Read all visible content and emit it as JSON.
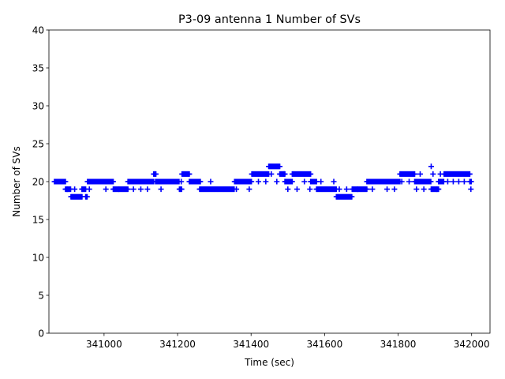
{
  "chart_data": {
    "type": "scatter",
    "title": "P3-09 antenna 1 Number of SVs",
    "xlabel": "Time (sec)",
    "ylabel": "Number of SVs",
    "xlim": [
      340850,
      342050
    ],
    "ylim": [
      0,
      40
    ],
    "xticks": [
      341000,
      341200,
      341400,
      341600,
      341800,
      342000
    ],
    "yticks": [
      0,
      5,
      10,
      15,
      20,
      25,
      30,
      35,
      40
    ],
    "marker": "+",
    "color": "#0000ff",
    "segments": [
      {
        "from": 340865,
        "to": 340895,
        "value": 20
      },
      {
        "from": 340895,
        "to": 340910,
        "value": 19
      },
      {
        "from": 340910,
        "to": 340940,
        "value": 18
      },
      {
        "from": 340940,
        "to": 340950,
        "value": 19
      },
      {
        "from": 340950,
        "to": 340955,
        "value": 18
      },
      {
        "from": 340955,
        "to": 341025,
        "value": 20
      },
      {
        "from": 341025,
        "to": 341065,
        "value": 19
      },
      {
        "from": 341065,
        "to": 341135,
        "value": 20
      },
      {
        "from": 341135,
        "to": 341142,
        "value": 21
      },
      {
        "from": 341142,
        "to": 341205,
        "value": 20
      },
      {
        "from": 341205,
        "to": 341212,
        "value": 19
      },
      {
        "from": 341212,
        "to": 341232,
        "value": 21
      },
      {
        "from": 341232,
        "to": 341262,
        "value": 20
      },
      {
        "from": 341262,
        "to": 341355,
        "value": 19
      },
      {
        "from": 341355,
        "to": 341402,
        "value": 20
      },
      {
        "from": 341402,
        "to": 341448,
        "value": 21
      },
      {
        "from": 341448,
        "to": 341478,
        "value": 22
      },
      {
        "from": 341478,
        "to": 341492,
        "value": 21
      },
      {
        "from": 341492,
        "to": 341512,
        "value": 20
      },
      {
        "from": 341512,
        "to": 341562,
        "value": 21
      },
      {
        "from": 341562,
        "to": 341578,
        "value": 20
      },
      {
        "from": 341578,
        "to": 341632,
        "value": 19
      },
      {
        "from": 341632,
        "to": 341675,
        "value": 18
      },
      {
        "from": 341675,
        "to": 341715,
        "value": 19
      },
      {
        "from": 341715,
        "to": 341805,
        "value": 20
      },
      {
        "from": 341805,
        "to": 341845,
        "value": 21
      },
      {
        "from": 341845,
        "to": 341890,
        "value": 20
      },
      {
        "from": 341890,
        "to": 341910,
        "value": 19
      },
      {
        "from": 341910,
        "to": 341925,
        "value": 20
      },
      {
        "from": 341925,
        "to": 341995,
        "value": 21
      },
      {
        "from": 341995,
        "to": 342000,
        "value": 20
      }
    ],
    "extra_points": [
      {
        "x": 340900,
        "y": 19
      },
      {
        "x": 340920,
        "y": 19
      },
      {
        "x": 340940,
        "y": 19
      },
      {
        "x": 340960,
        "y": 19
      },
      {
        "x": 340975,
        "y": 20
      },
      {
        "x": 341005,
        "y": 19
      },
      {
        "x": 341020,
        "y": 20
      },
      {
        "x": 341040,
        "y": 19
      },
      {
        "x": 341080,
        "y": 19
      },
      {
        "x": 341100,
        "y": 19
      },
      {
        "x": 341118,
        "y": 19
      },
      {
        "x": 341140,
        "y": 20
      },
      {
        "x": 341155,
        "y": 19
      },
      {
        "x": 341210,
        "y": 20
      },
      {
        "x": 341240,
        "y": 20
      },
      {
        "x": 341260,
        "y": 19
      },
      {
        "x": 341290,
        "y": 20
      },
      {
        "x": 341360,
        "y": 19
      },
      {
        "x": 341395,
        "y": 19
      },
      {
        "x": 341420,
        "y": 20
      },
      {
        "x": 341440,
        "y": 20
      },
      {
        "x": 341455,
        "y": 21
      },
      {
        "x": 341470,
        "y": 20
      },
      {
        "x": 341490,
        "y": 21
      },
      {
        "x": 341500,
        "y": 19
      },
      {
        "x": 341525,
        "y": 19
      },
      {
        "x": 341545,
        "y": 20
      },
      {
        "x": 341560,
        "y": 19
      },
      {
        "x": 341575,
        "y": 20
      },
      {
        "x": 341590,
        "y": 20
      },
      {
        "x": 341625,
        "y": 20
      },
      {
        "x": 341640,
        "y": 19
      },
      {
        "x": 341660,
        "y": 19
      },
      {
        "x": 341690,
        "y": 19
      },
      {
        "x": 341730,
        "y": 19
      },
      {
        "x": 341750,
        "y": 20
      },
      {
        "x": 341770,
        "y": 19
      },
      {
        "x": 341790,
        "y": 19
      },
      {
        "x": 341810,
        "y": 20
      },
      {
        "x": 341830,
        "y": 20
      },
      {
        "x": 341850,
        "y": 19
      },
      {
        "x": 341860,
        "y": 21
      },
      {
        "x": 341870,
        "y": 19
      },
      {
        "x": 341880,
        "y": 20
      },
      {
        "x": 341890,
        "y": 22
      },
      {
        "x": 341895,
        "y": 21
      },
      {
        "x": 341905,
        "y": 19
      },
      {
        "x": 341915,
        "y": 21
      },
      {
        "x": 341935,
        "y": 20
      },
      {
        "x": 341950,
        "y": 20
      },
      {
        "x": 341965,
        "y": 20
      },
      {
        "x": 341980,
        "y": 20
      },
      {
        "x": 341998,
        "y": 19
      }
    ]
  }
}
